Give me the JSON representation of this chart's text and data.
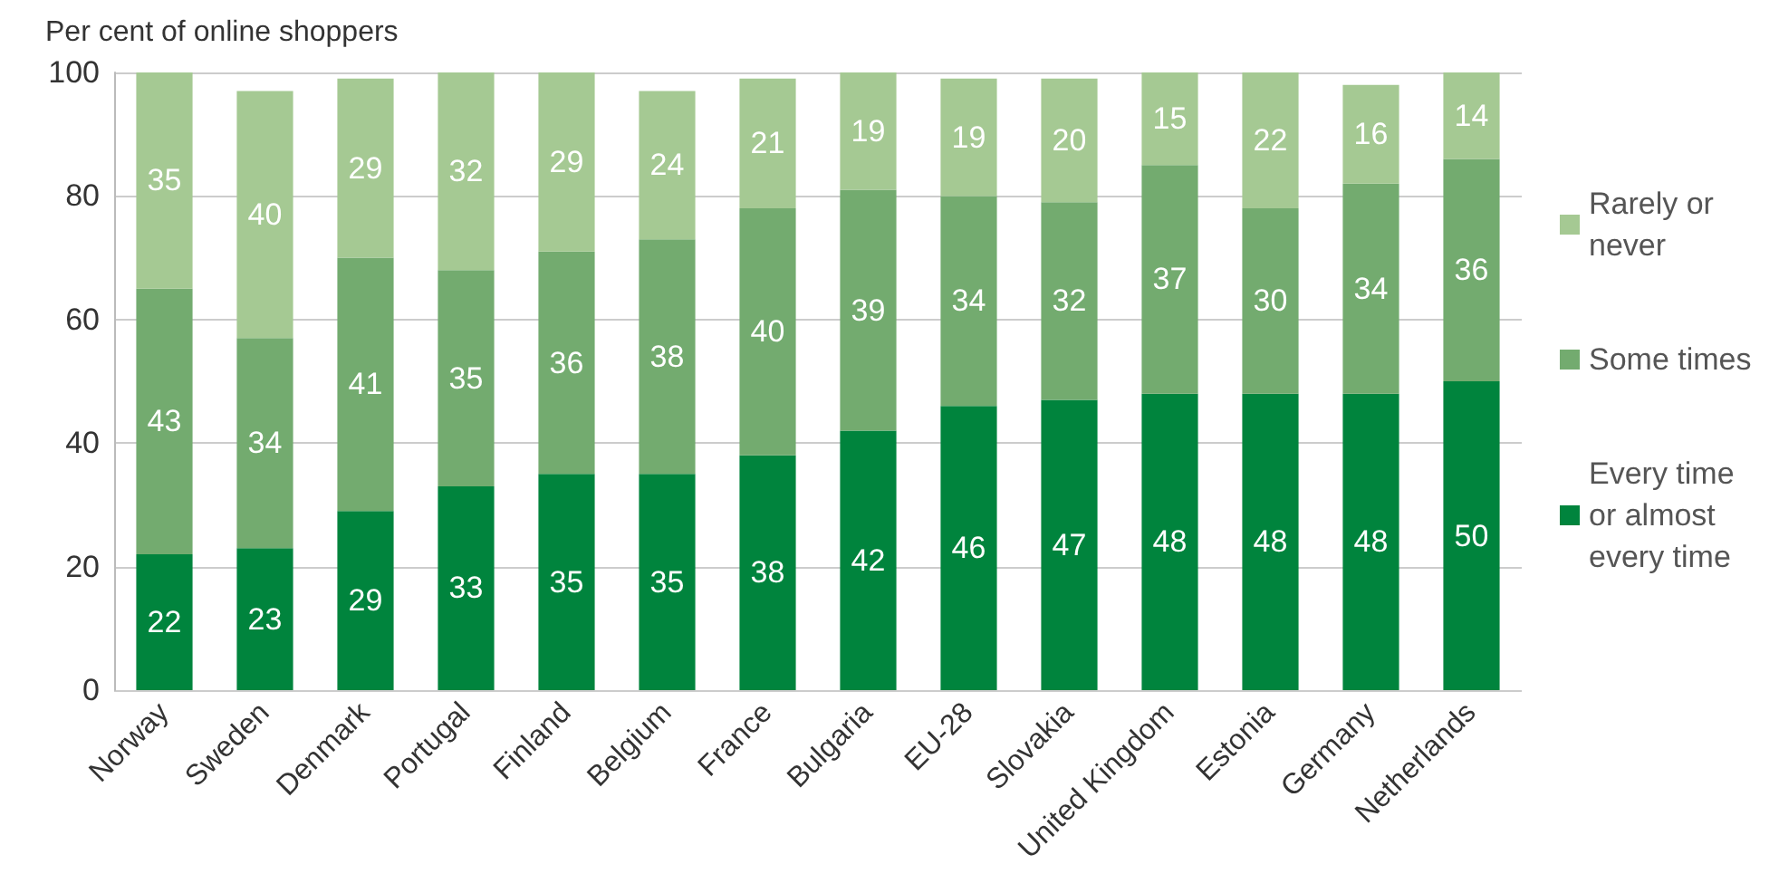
{
  "chart_data": {
    "type": "bar",
    "ylabel": "Per cent of online shoppers",
    "stacked": true,
    "data_labels": true,
    "grid": "y",
    "legend": "right",
    "categories": [
      "Norway",
      "Sweden",
      "Denmark",
      "Portugal",
      "Finland",
      "Belgium",
      "France",
      "Bulgaria",
      "EU-28",
      "Slovakia",
      "United Kingdom",
      "Estonia",
      "Germany",
      "Netherlands"
    ],
    "series": [
      {
        "name": "Every time or almost every time",
        "color": "#00843d",
        "values": [
          22,
          23,
          29,
          33,
          35,
          35,
          38,
          42,
          46,
          47,
          48,
          48,
          48,
          50
        ]
      },
      {
        "name": "Some times",
        "color": "#73ab6f",
        "values": [
          43,
          34,
          41,
          35,
          36,
          38,
          40,
          39,
          34,
          32,
          37,
          30,
          34,
          36
        ]
      },
      {
        "name": "Rarely or never",
        "color": "#a5c993",
        "values": [
          35,
          40,
          29,
          32,
          29,
          24,
          21,
          19,
          19,
          20,
          15,
          22,
          16,
          14
        ]
      }
    ],
    "ylim": [
      0,
      100
    ],
    "yticks": [
      0,
      20,
      40,
      60,
      80,
      100
    ]
  }
}
